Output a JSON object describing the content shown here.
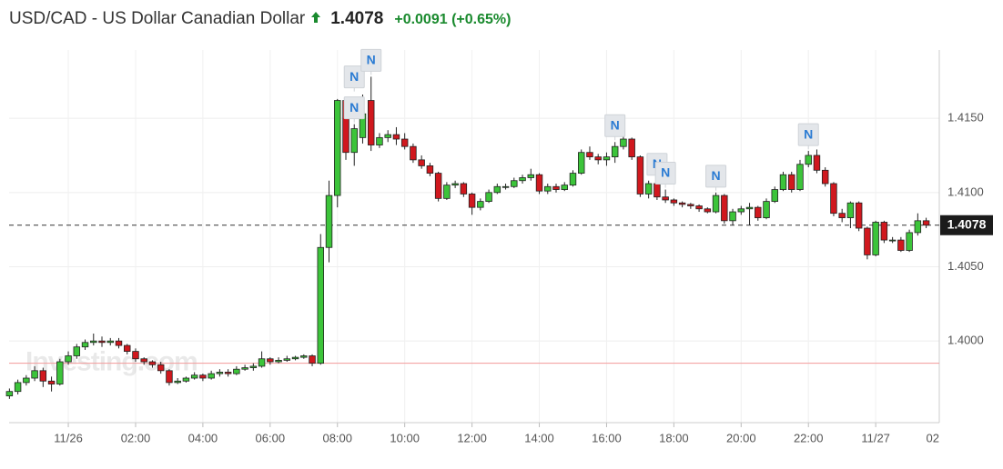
{
  "chart_data": {
    "type": "candlestick",
    "title": "USD/CAD - US Dollar Canadian Dollar",
    "current_price": 1.4078,
    "change": "+0.0091 (+0.65%)",
    "watermark": "Investing.com",
    "up_color": "#3cc43a",
    "down_color": "#d0181e",
    "reference_line": 1.3985,
    "reference_color": "#f29a9a",
    "grid": true,
    "xlim": [
      -1.76,
      25.89
    ],
    "xticks": [
      {
        "value": 0,
        "label": "11/26"
      },
      {
        "value": 2,
        "label": "02:00"
      },
      {
        "value": 4,
        "label": "04:00"
      },
      {
        "value": 6,
        "label": "06:00"
      },
      {
        "value": 8,
        "label": "08:00"
      },
      {
        "value": 10,
        "label": "10:00"
      },
      {
        "value": 12,
        "label": "12:00"
      },
      {
        "value": 14,
        "label": "14:00"
      },
      {
        "value": 16,
        "label": "16:00"
      },
      {
        "value": 18,
        "label": "18:00"
      },
      {
        "value": 20,
        "label": "20:00"
      },
      {
        "value": 22,
        "label": "22:00"
      },
      {
        "value": 24,
        "label": "11/27"
      },
      {
        "value": 26,
        "label": "02"
      }
    ],
    "ylim": [
      1.3945,
      1.4196
    ],
    "yticks": [
      {
        "value": 1.4,
        "label": "1.4000"
      },
      {
        "value": 1.405,
        "label": "1.4050"
      },
      {
        "value": 1.41,
        "label": "1.4100"
      },
      {
        "value": 1.415,
        "label": "1.4150"
      }
    ],
    "news_markers": {
      "x": [
        8.5,
        8.5,
        9,
        16.25,
        17.5,
        17.75,
        19.25,
        22
      ],
      "label": "N"
    },
    "x": [
      -1.75,
      -1.5,
      -1.25,
      -1,
      -0.75,
      -0.5,
      -0.25,
      0,
      0.25,
      0.5,
      0.75,
      1,
      1.25,
      1.5,
      1.75,
      2,
      2.25,
      2.5,
      2.75,
      3,
      3.25,
      3.5,
      3.75,
      4,
      4.25,
      4.5,
      4.75,
      5,
      5.25,
      5.5,
      5.75,
      6,
      6.25,
      6.5,
      6.75,
      7,
      7.25,
      7.5,
      7.75,
      8,
      8.25,
      8.5,
      8.75,
      9,
      9.25,
      9.5,
      9.75,
      10,
      10.25,
      10.5,
      10.75,
      11,
      11.25,
      11.5,
      11.75,
      12,
      12.25,
      12.5,
      12.75,
      13,
      13.25,
      13.5,
      13.75,
      14,
      14.25,
      14.5,
      14.75,
      15,
      15.25,
      15.5,
      15.75,
      16,
      16.25,
      16.5,
      16.75,
      17,
      17.25,
      17.5,
      17.75,
      18,
      18.25,
      18.5,
      18.75,
      19,
      19.25,
      19.5,
      19.75,
      20,
      20.25,
      20.5,
      20.75,
      21,
      21.25,
      21.5,
      21.75,
      22,
      22.25,
      22.5,
      22.75,
      23,
      23.25,
      23.5,
      23.75,
      24,
      24.25,
      24.5,
      24.75,
      25,
      25.25,
      25.5
    ],
    "open": [
      1.3963,
      1.3966,
      1.3972,
      1.3975,
      1.398,
      1.3973,
      1.3971,
      1.3986,
      1.399,
      1.3996,
      1.3999,
      1.4,
      1.3999,
      1.4,
      1.3997,
      1.3993,
      1.3988,
      1.3986,
      1.3984,
      1.398,
      1.3972,
      1.3973,
      1.3975,
      1.3977,
      1.3975,
      1.3978,
      1.3979,
      1.3978,
      1.3981,
      1.3982,
      1.3983,
      1.3988,
      1.3986,
      1.3987,
      1.3988,
      1.3989,
      1.399,
      1.3985,
      1.4063,
      1.4098,
      1.4162,
      1.4127,
      1.4137,
      1.4162,
      1.4132,
      1.4137,
      1.4139,
      1.4136,
      1.4131,
      1.4122,
      1.4118,
      1.4113,
      1.4096,
      1.4105,
      1.4106,
      1.4099,
      1.409,
      1.4094,
      1.41,
      1.4104,
      1.4104,
      1.4108,
      1.411,
      1.4112,
      1.4101,
      1.4104,
      1.4102,
      1.4105,
      1.4113,
      1.4127,
      1.4124,
      1.4122,
      1.4124,
      1.4131,
      1.4136,
      1.4124,
      1.4099,
      1.4106,
      1.4097,
      1.4095,
      1.4093,
      1.4092,
      1.4091,
      1.4089,
      1.4087,
      1.4098,
      1.4081,
      1.4087,
      1.4089,
      1.409,
      1.4083,
      1.4094,
      1.4102,
      1.4112,
      1.4102,
      1.4119,
      1.4125,
      1.4115,
      1.4106,
      1.4086,
      1.4083,
      1.4093,
      1.4076,
      1.4058,
      1.408,
      1.4068,
      1.4068,
      1.4061,
      1.4073,
      1.4081
    ],
    "high": [
      1.3968,
      1.3974,
      1.3977,
      1.3983,
      1.3982,
      1.3976,
      1.3988,
      1.3993,
      1.3998,
      1.4001,
      1.4005,
      1.4003,
      1.4002,
      1.4002,
      1.3998,
      1.3995,
      1.3989,
      1.3987,
      1.3986,
      1.3981,
      1.3975,
      1.3976,
      1.3979,
      1.3978,
      1.398,
      1.3981,
      1.3981,
      1.3983,
      1.3984,
      1.3985,
      1.3993,
      1.3989,
      1.3989,
      1.399,
      1.399,
      1.3991,
      1.3991,
      1.4072,
      1.4108,
      1.4163,
      1.4164,
      1.4146,
      1.4166,
      1.4178,
      1.414,
      1.4142,
      1.4144,
      1.414,
      1.4133,
      1.4125,
      1.412,
      1.4114,
      1.4107,
      1.4108,
      1.4107,
      1.41,
      1.4096,
      1.4102,
      1.4106,
      1.4106,
      1.411,
      1.4112,
      1.4116,
      1.4113,
      1.4106,
      1.4106,
      1.4107,
      1.4115,
      1.4129,
      1.4131,
      1.4126,
      1.4127,
      1.4134,
      1.4139,
      1.4137,
      1.4125,
      1.4108,
      1.4108,
      1.4102,
      1.4096,
      1.4094,
      1.4093,
      1.4092,
      1.409,
      1.41,
      1.4099,
      1.4089,
      1.4091,
      1.4093,
      1.4091,
      1.4096,
      1.4104,
      1.4114,
      1.4114,
      1.4122,
      1.4128,
      1.4129,
      1.4117,
      1.4107,
      1.4089,
      1.4094,
      1.4094,
      1.4077,
      1.4081,
      1.4081,
      1.407,
      1.407,
      1.4075,
      1.4086,
      1.4083
    ],
    "low": [
      1.3961,
      1.3964,
      1.397,
      1.3973,
      1.3969,
      1.3966,
      1.397,
      1.3984,
      1.3988,
      1.3994,
      1.3997,
      1.3996,
      1.3997,
      1.3995,
      1.3991,
      1.3986,
      1.3984,
      1.3982,
      1.3978,
      1.397,
      1.3971,
      1.3972,
      1.3974,
      1.3973,
      1.3974,
      1.3976,
      1.3976,
      1.3977,
      1.398,
      1.398,
      1.3982,
      1.3984,
      1.3985,
      1.3986,
      1.3987,
      1.3988,
      1.3983,
      1.3984,
      1.4053,
      1.409,
      1.4122,
      1.4118,
      1.4133,
      1.4128,
      1.413,
      1.4134,
      1.4132,
      1.4129,
      1.412,
      1.4116,
      1.4111,
      1.4094,
      1.4095,
      1.4103,
      1.4097,
      1.4085,
      1.4088,
      1.4093,
      1.4099,
      1.4102,
      1.4103,
      1.4106,
      1.4108,
      1.4099,
      1.4099,
      1.41,
      1.4101,
      1.4104,
      1.4112,
      1.4122,
      1.4119,
      1.4118,
      1.412,
      1.4129,
      1.4122,
      1.4097,
      1.4096,
      1.4095,
      1.4093,
      1.4091,
      1.409,
      1.4089,
      1.4087,
      1.4086,
      1.4086,
      1.4079,
      1.4078,
      1.4085,
      1.4078,
      1.4081,
      1.4082,
      1.4093,
      1.4101,
      1.41,
      1.4101,
      1.4117,
      1.4113,
      1.4104,
      1.4084,
      1.408,
      1.4076,
      1.4074,
      1.4055,
      1.4057,
      1.4066,
      1.4066,
      1.406,
      1.406,
      1.4071,
      1.4076
    ],
    "close": [
      1.3966,
      1.3972,
      1.3975,
      1.398,
      1.3973,
      1.3971,
      1.3986,
      1.399,
      1.3996,
      1.3999,
      1.4,
      1.3999,
      1.4,
      1.3997,
      1.3993,
      1.3988,
      1.3986,
      1.3984,
      1.398,
      1.3972,
      1.3973,
      1.3975,
      1.3977,
      1.3975,
      1.3978,
      1.3979,
      1.3978,
      1.3981,
      1.3982,
      1.3983,
      1.3988,
      1.3986,
      1.3987,
      1.3988,
      1.3989,
      1.399,
      1.3985,
      1.4063,
      1.4098,
      1.4162,
      1.4127,
      1.4143,
      1.4153,
      1.4132,
      1.4137,
      1.4139,
      1.4136,
      1.4131,
      1.4122,
      1.4118,
      1.4113,
      1.4096,
      1.4105,
      1.4106,
      1.4099,
      1.409,
      1.4094,
      1.41,
      1.4104,
      1.4104,
      1.4108,
      1.411,
      1.4112,
      1.4101,
      1.4104,
      1.4102,
      1.4105,
      1.4113,
      1.4127,
      1.4124,
      1.4122,
      1.4124,
      1.4131,
      1.4136,
      1.4124,
      1.4099,
      1.4106,
      1.4097,
      1.4095,
      1.4093,
      1.4092,
      1.4091,
      1.4089,
      1.4087,
      1.4098,
      1.4081,
      1.4087,
      1.4089,
      1.409,
      1.4083,
      1.4094,
      1.4102,
      1.4112,
      1.4102,
      1.4119,
      1.4125,
      1.4115,
      1.4106,
      1.4086,
      1.4083,
      1.4093,
      1.4076,
      1.4058,
      1.408,
      1.4068,
      1.4068,
      1.4061,
      1.4073,
      1.4081,
      1.4078
    ]
  }
}
